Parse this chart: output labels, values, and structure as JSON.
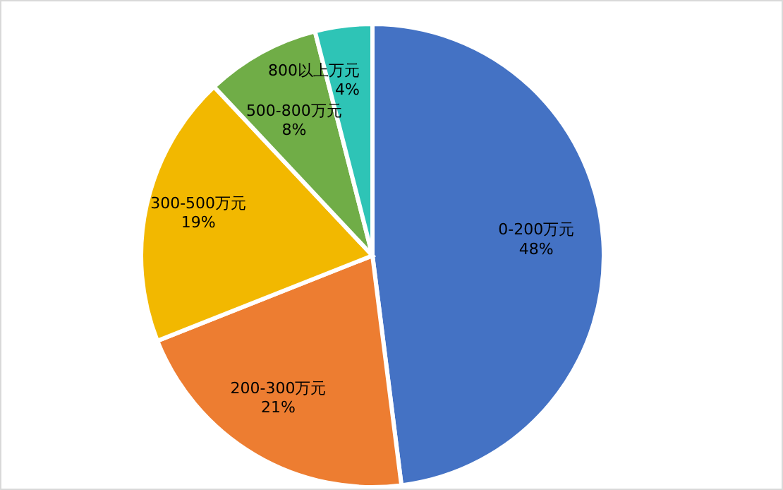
{
  "chart_data": {
    "type": "pie",
    "categories": [
      "0-200万元",
      "200-300万元",
      "300-500万元",
      "500-800万元",
      "800以上万元"
    ],
    "values": [
      48,
      21,
      19,
      8,
      4
    ],
    "value_labels": [
      "48%",
      "21%",
      "19%",
      "8%",
      "4%"
    ],
    "colors": [
      "#4472c4",
      "#ed7d31",
      "#f2b800",
      "#70ad47",
      "#2ec4b6"
    ],
    "legend": false
  }
}
